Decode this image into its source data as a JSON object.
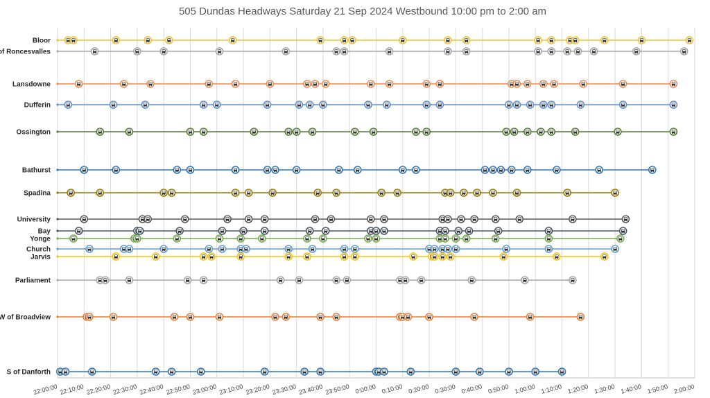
{
  "chart_data": {
    "type": "scatter",
    "title": "505 Dundas Headways Saturday 21 Sep 2024 Westbound 10:00 pm to 2:00 am",
    "xlabel": "",
    "ylabel": "",
    "x_tick_labels": [
      "22:00:00",
      "22:10:00",
      "22:20:00",
      "22:30:00",
      "22:40:00",
      "22:50:00",
      "23:00:00",
      "23:10:00",
      "23:20:00",
      "23:30:00",
      "23:40:00",
      "23:50:00",
      "0:00:00",
      "0:10:00",
      "0:20:00",
      "0:30:00",
      "0:40:00",
      "0:50:00",
      "1:00:00",
      "1:10:00",
      "1:20:00",
      "1:30:00",
      "1:40:00",
      "1:50:00",
      "2:00:00"
    ],
    "xlim_minutes_after_22h": [
      0,
      240
    ],
    "grid": "vertical",
    "legend": "none",
    "marker": "bus-icon",
    "series": [
      {
        "name": "Bloor",
        "color": "#f2c12e",
        "times": [
          "22:04",
          "22:06",
          "22:22",
          "22:34",
          "22:42",
          "23:06",
          "23:39",
          "23:48",
          "23:51",
          "0:10",
          "0:27",
          "0:34",
          "1:01",
          "1:06",
          "1:13",
          "1:15",
          "1:26",
          "1:40",
          "1:58"
        ]
      },
      {
        "name": "E of Roncesvalles",
        "color": "#a6a6a6",
        "times": [
          "22:14",
          "22:30",
          "22:40",
          "23:01",
          "23:26",
          "23:45",
          "23:48",
          "0:05",
          "0:27",
          "0:34",
          "1:01",
          "1:06",
          "1:12",
          "1:16",
          "1:22",
          "1:38",
          "1:56"
        ]
      },
      {
        "name": "Lansdowne",
        "color": "#ed8b4f",
        "times": [
          "22:08",
          "22:25",
          "22:35",
          "22:57",
          "23:07",
          "23:20",
          "23:34",
          "23:37",
          "23:41",
          "23:58",
          "0:05",
          "0:19",
          "0:24",
          "0:51",
          "0:53",
          "0:57",
          "1:03",
          "1:07",
          "1:18",
          "1:33",
          "1:52"
        ]
      },
      {
        "name": "Dufferin",
        "color": "#5b8ed6",
        "times": [
          "22:04",
          "22:21",
          "22:33",
          "22:55",
          "23:00",
          "23:19",
          "23:31",
          "23:35",
          "23:40",
          "23:57",
          "0:04",
          "0:19",
          "0:24",
          "0:50",
          "0:53",
          "0:58",
          "1:03",
          "1:06",
          "1:17",
          "1:33",
          "1:52"
        ]
      },
      {
        "name": "Ossington",
        "color": "#507e32",
        "times": [
          "22:16",
          "22:27",
          "22:50",
          "22:55",
          "23:14",
          "23:27",
          "23:30",
          "23:36",
          "23:52",
          "23:59",
          "0:15",
          "0:19",
          "0:49",
          "0:52",
          "0:57",
          "1:02",
          "1:06",
          "1:15",
          "1:31",
          "1:52"
        ]
      },
      {
        "name": "Bathurst",
        "color": "#2e75b6",
        "times": [
          "22:10",
          "22:22",
          "22:45",
          "22:50",
          "23:07",
          "23:19",
          "23:22",
          "23:30",
          "23:46",
          "23:53",
          "0:10",
          "0:15",
          "0:41",
          "0:44",
          "0:47",
          "0:51",
          "0:57",
          "1:08",
          "1:24",
          "1:44"
        ]
      },
      {
        "name": "Spadina",
        "color": "#9c7a00",
        "times": [
          "22:05",
          "22:16",
          "22:40",
          "22:43",
          "23:07",
          "23:12",
          "23:21",
          "23:38",
          "23:45",
          "0:02",
          "0:08",
          "0:26",
          "0:28",
          "0:33",
          "0:38",
          "0:44",
          "0:53",
          "1:12",
          "1:30"
        ]
      },
      {
        "name": "University",
        "color": "#595959",
        "times": [
          "22:10",
          "22:32",
          "22:34",
          "22:48",
          "23:04",
          "23:12",
          "23:18",
          "23:37",
          "23:43",
          "23:58",
          "0:03",
          "0:25",
          "0:27",
          "0:32",
          "0:37",
          "0:45",
          "0:54",
          "1:14",
          "1:34"
        ]
      },
      {
        "name": "Bay",
        "color": "#44546a",
        "times": [
          "22:08",
          "22:30",
          "22:31",
          "22:46",
          "23:02",
          "23:10",
          "23:18",
          "23:35",
          "23:41",
          "23:58",
          "0:00",
          "0:03",
          "0:24",
          "0:26",
          "0:31",
          "0:35",
          "0:46",
          "1:05",
          "1:33"
        ]
      },
      {
        "name": "Yonge",
        "color": "#70ad47",
        "times": [
          "22:06",
          "22:29",
          "22:30",
          "22:45",
          "23:01",
          "23:09",
          "23:17",
          "23:34",
          "23:40",
          "23:57",
          "0:00",
          "0:24",
          "0:26",
          "0:30",
          "0:34",
          "0:45",
          "1:05",
          "1:32"
        ]
      },
      {
        "name": "Church",
        "color": "#5b9bd5",
        "times": [
          "22:12",
          "22:25",
          "22:27",
          "22:40",
          "22:57",
          "23:02",
          "23:09",
          "23:11",
          "23:27",
          "23:36",
          "23:48",
          "23:52",
          "0:20",
          "0:22",
          "0:25",
          "0:27",
          "0:30",
          "0:49",
          "1:05",
          "1:30"
        ]
      },
      {
        "name": "Jarvis",
        "color": "#ffc000",
        "times": [
          "22:22",
          "22:37",
          "22:55",
          "22:58",
          "23:09",
          "23:27",
          "23:34",
          "23:48",
          "23:52",
          "0:14",
          "0:21",
          "0:22",
          "0:25",
          "0:28",
          "0:48",
          "1:08",
          "1:26"
        ]
      },
      {
        "name": "Parliament",
        "color": "#a6a6a6",
        "times": [
          "22:16",
          "22:18",
          "22:27",
          "22:49",
          "22:55",
          "23:24",
          "23:31",
          "23:45",
          "23:49",
          "0:09",
          "0:11",
          "0:17",
          "0:36",
          "0:56",
          "1:14"
        ]
      },
      {
        "name": "W of Broadview",
        "color": "#ed7d31",
        "times": [
          "22:11",
          "22:12",
          "22:21",
          "22:44",
          "22:50",
          "23:01",
          "23:22",
          "23:26",
          "23:39",
          "23:45",
          "0:09",
          "0:10",
          "0:12",
          "0:20",
          "0:37",
          "0:58",
          "1:17"
        ]
      },
      {
        "name": "S of Danforth",
        "color": "#2e75b6",
        "times": [
          "22:01",
          "22:03",
          "22:13",
          "22:37",
          "22:43",
          "22:54",
          "23:18",
          "23:33",
          "23:39",
          "0:00",
          "0:01",
          "0:03",
          "0:13",
          "0:30",
          "0:39",
          "0:50",
          "1:00",
          "1:10"
        ]
      }
    ]
  }
}
